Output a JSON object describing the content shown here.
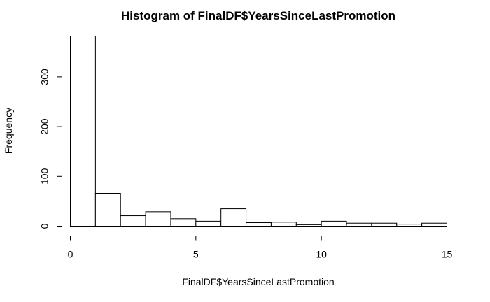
{
  "chart_data": {
    "type": "bar",
    "title": "Histogram of FinalDF$YearsSinceLastPromotion",
    "xlabel": "FinalDF$YearsSinceLastPromotion",
    "ylabel": "Frequency",
    "bins": [
      {
        "x0": 0,
        "x1": 1,
        "count": 382
      },
      {
        "x0": 1,
        "x1": 2,
        "count": 66
      },
      {
        "x0": 2,
        "x1": 3,
        "count": 21
      },
      {
        "x0": 3,
        "x1": 4,
        "count": 29
      },
      {
        "x0": 4,
        "x1": 5,
        "count": 15
      },
      {
        "x0": 5,
        "x1": 6,
        "count": 10
      },
      {
        "x0": 6,
        "x1": 7,
        "count": 35
      },
      {
        "x0": 7,
        "x1": 8,
        "count": 7
      },
      {
        "x0": 8,
        "x1": 9,
        "count": 8
      },
      {
        "x0": 9,
        "x1": 10,
        "count": 3
      },
      {
        "x0": 10,
        "x1": 11,
        "count": 10
      },
      {
        "x0": 11,
        "x1": 12,
        "count": 6
      },
      {
        "x0": 12,
        "x1": 13,
        "count": 6
      },
      {
        "x0": 13,
        "x1": 14,
        "count": 4
      },
      {
        "x0": 14,
        "x1": 15,
        "count": 6
      }
    ],
    "xlim": [
      0,
      15
    ],
    "ylim": [
      0,
      382
    ],
    "x_ticks": [
      0,
      5,
      10,
      15
    ],
    "y_ticks": [
      0,
      100,
      200,
      300
    ],
    "grid": false,
    "bar_fill": "#ffffff",
    "bar_stroke": "#000000"
  }
}
